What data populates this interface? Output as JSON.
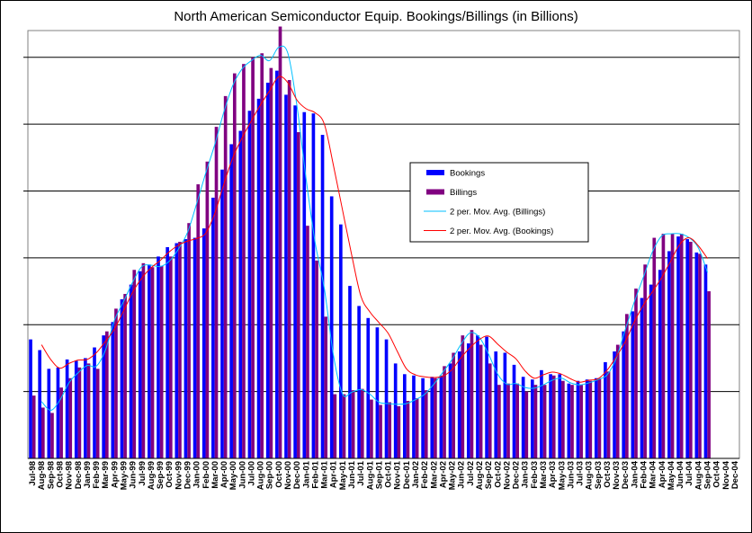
{
  "chart_data": {
    "type": "bar",
    "title": "North American Semiconductor Equip. Bookings/Billings (in Billions)",
    "categories": [
      "Jul-98",
      "Aug-98",
      "Sep-98",
      "Oct-98",
      "Nov-98",
      "Dec-98",
      "Jan-99",
      "Feb-99",
      "Mar-99",
      "Apr-99",
      "May-99",
      "Jun-99",
      "Jul-99",
      "Aug-99",
      "Sep-99",
      "Oct-99",
      "Nov-99",
      "Dec-99",
      "Jan-00",
      "Feb-00",
      "Mar-00",
      "Apr-00",
      "May-00",
      "Jun-00",
      "Jul-00",
      "Aug-00",
      "Sep-00",
      "Oct-00",
      "Nov-00",
      "Dec-00",
      "Jan-01",
      "Feb-01",
      "Mar-01",
      "Apr-01",
      "May-01",
      "Jun-01",
      "Jul-01",
      "Aug-01",
      "Sep-01",
      "Oct-01",
      "Nov-01",
      "Dec-01",
      "Jan-02",
      "Feb-02",
      "Mar-02",
      "Apr-02",
      "May-02",
      "Jun-02",
      "Jul-02",
      "Aug-02",
      "Sep-02",
      "Oct-02",
      "Nov-02",
      "Dec-02",
      "Jan-03",
      "Feb-03",
      "Mar-03",
      "Apr-03",
      "May-03",
      "Jun-03",
      "Jul-03",
      "Aug-03",
      "Sep-03",
      "Oct-03",
      "Nov-03",
      "Dec-03",
      "Jan-04",
      "Feb-04",
      "Mar-04",
      "Apr-04",
      "May-04",
      "Jun-04",
      "Jul-04",
      "Aug-04",
      "Sep-04",
      "Oct-04",
      "Nov-04",
      "Dec-04"
    ],
    "series": [
      {
        "name": "Bookings",
        "color": "#0000ff",
        "values": [
          0.89,
          0.81,
          0.67,
          0.68,
          0.74,
          0.73,
          0.75,
          0.83,
          0.92,
          1.02,
          1.19,
          1.3,
          1.4,
          1.45,
          1.51,
          1.58,
          1.61,
          1.64,
          1.65,
          1.72,
          1.95,
          2.16,
          2.35,
          2.45,
          2.6,
          2.69,
          2.81,
          2.9,
          2.72,
          2.64,
          2.59,
          2.58,
          2.42,
          1.96,
          1.75,
          1.29,
          1.14,
          1.05,
          0.98,
          0.89,
          0.71,
          0.63,
          0.62,
          0.6,
          0.61,
          0.62,
          0.71,
          0.8,
          0.86,
          0.92,
          0.91,
          0.8,
          0.79,
          0.7,
          0.61,
          0.59,
          0.66,
          0.63,
          0.63,
          0.56,
          0.58,
          0.59,
          0.6,
          0.72,
          0.8,
          0.95,
          1.1,
          1.2,
          1.3,
          1.41,
          1.55,
          1.66,
          1.64,
          1.54,
          1.45,
          0,
          0,
          0
        ]
      },
      {
        "name": "Billings",
        "color": "#800080",
        "values": [
          0.47,
          0.38,
          0.34,
          0.53,
          0.6,
          0.68,
          0.71,
          0.67,
          0.95,
          1.12,
          1.23,
          1.41,
          1.46,
          1.43,
          1.44,
          1.51,
          1.62,
          1.76,
          2.05,
          2.22,
          2.48,
          2.71,
          2.88,
          2.95,
          3.0,
          3.03,
          2.92,
          3.23,
          2.83,
          2.44,
          1.74,
          1.48,
          1.06,
          0.48,
          0.48,
          0.51,
          0.52,
          0.44,
          0.4,
          0.42,
          0.39,
          0.43,
          0.45,
          0.51,
          0.6,
          0.69,
          0.79,
          0.92,
          0.96,
          0.85,
          0.71,
          0.55,
          0.56,
          0.56,
          0.5,
          0.55,
          0.55,
          0.62,
          0.58,
          0.55,
          0.55,
          0.58,
          0.6,
          0.65,
          0.85,
          1.08,
          1.27,
          1.45,
          1.65,
          1.68,
          1.68,
          1.68,
          1.62,
          1.53,
          1.25,
          0,
          0,
          0
        ]
      }
    ],
    "moving_averages": [
      {
        "name": "2 per. Mov. Avg. (Billings)",
        "color": "#00bfff"
      },
      {
        "name": "2 per. Mov. Avg. (Bookings)",
        "color": "#ff0000"
      }
    ],
    "ylim": [
      0,
      3.2
    ],
    "grid": true,
    "legend_position": "right-center"
  }
}
